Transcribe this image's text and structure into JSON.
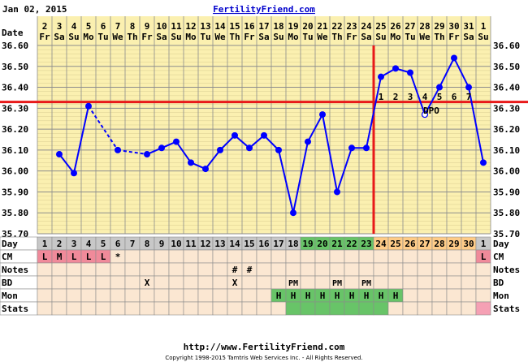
{
  "header": {
    "date": "Jan 02, 2015",
    "site": "FertilityFriend.com"
  },
  "footer": {
    "url": "http://www.FertilityFriend.com",
    "copyright": "Copyright 1998-2015 Tamtris Web Services Inc. - All Rights Reserved."
  },
  "chart_data": {
    "type": "line",
    "title": "",
    "ylim": [
      35.7,
      36.6
    ],
    "y_ticks": [
      "36.60",
      "36.50",
      "36.40",
      "36.30",
      "36.20",
      "36.10",
      "36.00",
      "35.90",
      "35.80",
      "35.70"
    ],
    "date_row_label": "Date",
    "dates": [
      "2",
      "3",
      "4",
      "5",
      "6",
      "7",
      "8",
      "9",
      "10",
      "11",
      "12",
      "13",
      "14",
      "15",
      "16",
      "17",
      "18",
      "19",
      "20",
      "21",
      "22",
      "23",
      "24",
      "25",
      "26",
      "27",
      "28",
      "29",
      "30",
      "31",
      "1"
    ],
    "weekdays": [
      "Fr",
      "Sa",
      "Su",
      "Mo",
      "Tu",
      "We",
      "Th",
      "Fr",
      "Sa",
      "Su",
      "Mo",
      "Tu",
      "We",
      "Th",
      "Fr",
      "Sa",
      "Su",
      "Mo",
      "Tu",
      "We",
      "Th",
      "Fr",
      "Sa",
      "Su",
      "Mo",
      "Tu",
      "We",
      "Th",
      "Fr",
      "Sa",
      "Su"
    ],
    "cycle_days": [
      "1",
      "2",
      "3",
      "4",
      "5",
      "6",
      "7",
      "8",
      "9",
      "10",
      "11",
      "12",
      "13",
      "14",
      "15",
      "16",
      "17",
      "18",
      "19",
      "20",
      "21",
      "22",
      "23",
      "24",
      "25",
      "26",
      "27",
      "28",
      "29",
      "30",
      "1"
    ],
    "temps": [
      null,
      36.08,
      35.99,
      36.31,
      null,
      36.1,
      null,
      36.08,
      36.11,
      36.14,
      36.04,
      36.01,
      36.1,
      36.17,
      36.11,
      36.17,
      36.1,
      35.8,
      36.14,
      36.27,
      35.9,
      36.11,
      36.11,
      36.45,
      36.49,
      36.47,
      36.27,
      36.4,
      36.54,
      36.4,
      36.04
    ],
    "open_circle_index": 26,
    "dashed_segments": [
      [
        3,
        5
      ],
      [
        5,
        7
      ]
    ],
    "coverline": 36.33,
    "ovulation_index": 22,
    "dpo_labels": [
      "1",
      "2",
      "3",
      "4",
      "5",
      "6",
      "7"
    ],
    "dpo_text": "DPO",
    "colors": {
      "plot_bg": "#fbf0b0",
      "grid": "#8c8c8c",
      "line": "#0000ff",
      "coverline": "#e81919",
      "ovulation": "#e81919",
      "day_gray": "#c8c8c8",
      "day_green": "#68c468",
      "day_orange": "#ffcc88",
      "cm_pink": "#f08a9a",
      "cell_bg": "#fbe7d2",
      "mon_green": "#68c468",
      "stats_pink": "#f5a0b4"
    },
    "rows": {
      "day": "Day",
      "cm": "CM",
      "notes": "Notes",
      "bd": "BD",
      "mon": "Mon",
      "stats": "Stats"
    },
    "cm_values": [
      "L",
      "M",
      "L",
      "L",
      "L",
      "*",
      "",
      "",
      "",
      "",
      "",
      "",
      "",
      "",
      "",
      "",
      "",
      "",
      "",
      "",
      "",
      "",
      "",
      "",
      "",
      "",
      "",
      "",
      "",
      "",
      "L"
    ],
    "notes_values": [
      "",
      "",
      "",
      "",
      "",
      "",
      "",
      "",
      "",
      "",
      "",
      "",
      "",
      "#",
      "#",
      "",
      "",
      "",
      "",
      "",
      "",
      "",
      "",
      "",
      "",
      "",
      "",
      "",
      "",
      "",
      ""
    ],
    "bd_values": [
      "",
      "",
      "",
      "",
      "",
      "",
      "",
      "X",
      "",
      "",
      "",
      "",
      "",
      "X",
      "",
      "",
      "",
      "PM",
      "",
      "",
      "PM",
      "",
      "PM",
      "",
      "",
      "",
      "",
      "",
      "",
      "",
      ""
    ],
    "mon_values": [
      "",
      "",
      "",
      "",
      "",
      "",
      "",
      "",
      "",
      "",
      "",
      "",
      "",
      "",
      "",
      "",
      "H",
      "H",
      "H",
      "H",
      "H",
      "H",
      "H",
      "H",
      "H",
      "",
      "",
      "",
      "",
      "",
      ""
    ],
    "stats_green": [
      17,
      18,
      19,
      20,
      21,
      22,
      23
    ],
    "stats_pink": [
      30
    ]
  }
}
